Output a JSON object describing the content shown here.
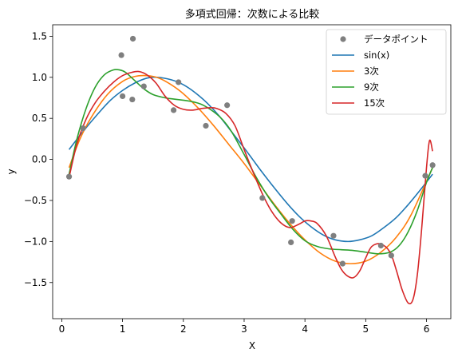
{
  "chart_data": {
    "type": "line",
    "title": "多項式回帰：次数による比較",
    "xlabel": "X",
    "ylabel": "y",
    "xlim": [
      -0.15,
      6.4
    ],
    "ylim": [
      -1.94,
      1.64
    ],
    "xticks": [
      0,
      1,
      2,
      3,
      4,
      5,
      6
    ],
    "yticks": [
      -1.5,
      -1.0,
      -0.5,
      0.0,
      0.5,
      1.0,
      1.5
    ],
    "xtick_labels": [
      "0",
      "1",
      "2",
      "3",
      "4",
      "5",
      "6"
    ],
    "ytick_labels": [
      "−1.5",
      "−1.0",
      "−0.5",
      "0.0",
      "0.5",
      "1.0",
      "1.5"
    ],
    "grid": false,
    "legend_position": "top-right",
    "scatter": {
      "name": "データポイント",
      "color": "#7f7f7f",
      "points": [
        [
          0.12,
          -0.21
        ],
        [
          0.35,
          0.38
        ],
        [
          0.98,
          1.27
        ],
        [
          1.0,
          0.77
        ],
        [
          1.16,
          0.73
        ],
        [
          1.17,
          1.47
        ],
        [
          1.35,
          0.89
        ],
        [
          1.84,
          0.6
        ],
        [
          1.92,
          0.94
        ],
        [
          2.37,
          0.41
        ],
        [
          2.72,
          0.66
        ],
        [
          3.3,
          -0.47
        ],
        [
          3.77,
          -1.01
        ],
        [
          3.79,
          -0.75
        ],
        [
          4.47,
          -0.93
        ],
        [
          4.62,
          -1.27
        ],
        [
          5.25,
          -1.05
        ],
        [
          5.42,
          -1.17
        ],
        [
          5.98,
          -0.2
        ],
        [
          6.1,
          -0.07
        ]
      ]
    },
    "series": [
      {
        "name": "sin(x)",
        "color": "#1f77b4",
        "x": [
          0.12,
          0.35,
          0.6,
          0.8,
          1.0,
          1.2,
          1.4,
          1.57,
          1.8,
          2.0,
          2.2,
          2.4,
          2.6,
          2.8,
          3.0,
          3.14,
          3.3,
          3.5,
          3.7,
          3.9,
          4.1,
          4.3,
          4.5,
          4.71,
          4.9,
          5.1,
          5.3,
          5.5,
          5.7,
          5.9,
          6.1
        ],
        "y": [
          0.12,
          0.34,
          0.56,
          0.72,
          0.84,
          0.93,
          0.99,
          1.0,
          0.97,
          0.91,
          0.81,
          0.68,
          0.52,
          0.33,
          0.14,
          0.0,
          -0.16,
          -0.35,
          -0.53,
          -0.69,
          -0.82,
          -0.92,
          -0.98,
          -1.0,
          -0.98,
          -0.93,
          -0.83,
          -0.71,
          -0.55,
          -0.37,
          -0.18
        ]
      },
      {
        "name": "3次",
        "color": "#ff7f0e",
        "x": [
          0.12,
          0.3,
          0.5,
          0.75,
          1.0,
          1.2,
          1.4,
          1.6,
          1.8,
          2.0,
          2.25,
          2.5,
          2.75,
          3.0,
          3.25,
          3.5,
          3.75,
          4.0,
          4.25,
          4.5,
          4.75,
          5.0,
          5.25,
          5.5,
          5.75,
          6.1
        ],
        "y": [
          -0.1,
          0.25,
          0.53,
          0.79,
          0.95,
          1.01,
          1.02,
          0.99,
          0.91,
          0.8,
          0.62,
          0.41,
          0.18,
          -0.05,
          -0.3,
          -0.55,
          -0.78,
          -0.98,
          -1.14,
          -1.24,
          -1.27,
          -1.24,
          -1.13,
          -0.95,
          -0.67,
          -0.1
        ]
      },
      {
        "name": "9次",
        "color": "#2ca02c",
        "x": [
          0.12,
          0.25,
          0.4,
          0.55,
          0.7,
          0.85,
          0.95,
          1.05,
          1.2,
          1.35,
          1.5,
          1.7,
          1.9,
          2.1,
          2.3,
          2.5,
          2.65,
          2.8,
          3.0,
          3.2,
          3.4,
          3.6,
          3.8,
          4.0,
          4.2,
          4.4,
          4.6,
          4.8,
          5.0,
          5.2,
          5.4,
          5.55,
          5.7,
          5.85,
          6.0,
          6.1
        ],
        "y": [
          -0.18,
          0.25,
          0.62,
          0.88,
          1.03,
          1.09,
          1.09,
          1.06,
          0.96,
          0.86,
          0.79,
          0.75,
          0.73,
          0.71,
          0.67,
          0.58,
          0.48,
          0.33,
          0.06,
          -0.22,
          -0.46,
          -0.66,
          -0.85,
          -0.99,
          -1.06,
          -1.09,
          -1.1,
          -1.11,
          -1.13,
          -1.15,
          -1.13,
          -1.05,
          -0.88,
          -0.62,
          -0.28,
          -0.1
        ]
      },
      {
        "name": "15次",
        "color": "#d62728",
        "x": [
          0.12,
          0.25,
          0.4,
          0.55,
          0.7,
          0.85,
          1.0,
          1.15,
          1.27,
          1.4,
          1.55,
          1.7,
          1.85,
          2.0,
          2.15,
          2.3,
          2.45,
          2.55,
          2.7,
          2.85,
          3.0,
          3.15,
          3.3,
          3.45,
          3.6,
          3.75,
          3.9,
          4.0,
          4.1,
          4.2,
          4.35,
          4.5,
          4.6,
          4.7,
          4.8,
          4.9,
          5.0,
          5.1,
          5.25,
          5.4,
          5.5,
          5.6,
          5.7,
          5.78,
          5.85,
          5.92,
          6.0,
          6.05,
          6.1
        ],
        "y": [
          -0.22,
          0.19,
          0.49,
          0.69,
          0.83,
          0.94,
          1.02,
          1.06,
          1.07,
          1.03,
          0.93,
          0.77,
          0.66,
          0.61,
          0.6,
          0.62,
          0.63,
          0.62,
          0.56,
          0.41,
          0.12,
          -0.16,
          -0.42,
          -0.63,
          -0.77,
          -0.83,
          -0.79,
          -0.75,
          -0.75,
          -0.78,
          -0.93,
          -1.19,
          -1.34,
          -1.42,
          -1.44,
          -1.36,
          -1.2,
          -1.06,
          -1.03,
          -1.13,
          -1.34,
          -1.59,
          -1.75,
          -1.7,
          -1.4,
          -0.85,
          -0.1,
          0.23,
          0.1
        ]
      }
    ]
  }
}
